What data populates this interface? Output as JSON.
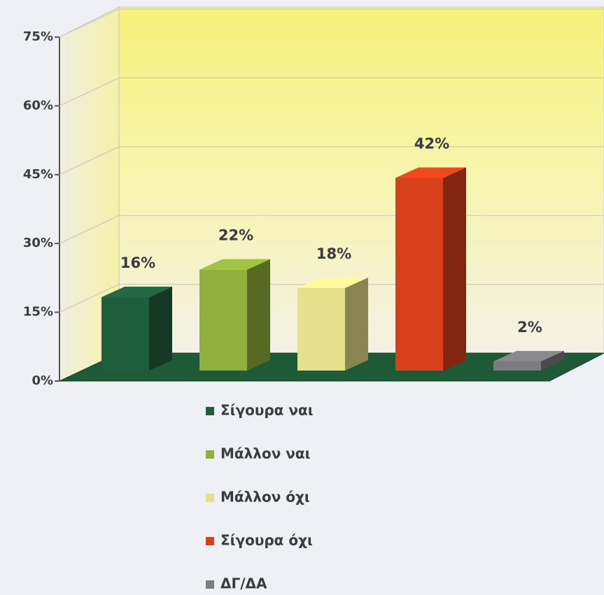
{
  "chart_data": {
    "type": "bar3d",
    "categories": [
      "Σίγουρα ναι",
      "Μάλλον ναι",
      "Μάλλον όχι",
      "Σίγουρα όχι",
      "ΔΓ/ΔΑ"
    ],
    "values": [
      16,
      22,
      18,
      42,
      2
    ],
    "value_labels": [
      "16%",
      "22%",
      "18%",
      "42%",
      "2%"
    ],
    "colors": [
      "#1f5e3c",
      "#8fb03c",
      "#e6e08c",
      "#d8401c",
      "#7c7c80"
    ],
    "ylim": [
      0,
      75
    ],
    "yticks": [
      {
        "value": 0,
        "label": "0%"
      },
      {
        "value": 15,
        "label": "15%"
      },
      {
        "value": 30,
        "label": "30%"
      },
      {
        "value": 45,
        "label": "45%"
      },
      {
        "value": 60,
        "label": "60%"
      },
      {
        "value": 75,
        "label": "75%"
      }
    ],
    "grid": true
  }
}
